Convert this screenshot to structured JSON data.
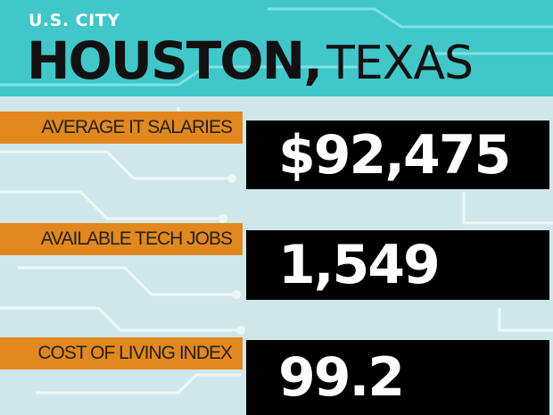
{
  "header": {
    "kicker": "U.S. CITY",
    "city": "HOUSTON,",
    "state": "TEXAS"
  },
  "stats": [
    {
      "label": "AVERAGE IT SALARIES",
      "value": "$92,475"
    },
    {
      "label": "AVAILABLE TECH JOBS",
      "value": "1,549"
    },
    {
      "label": "COST OF LIVING INDEX",
      "value": "99.2"
    }
  ]
}
